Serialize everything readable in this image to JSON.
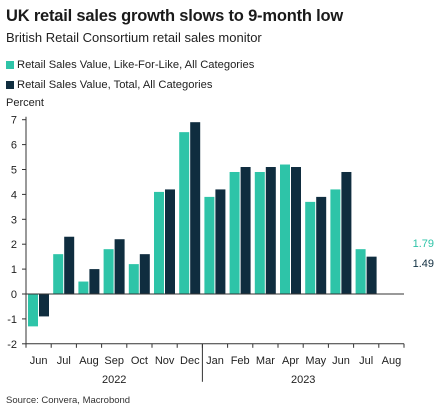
{
  "title": "UK retail sales growth slows to 9-month low",
  "subtitle": "British Retail Consortium retail sales monitor",
  "source": "Source: Convera, Macrobond",
  "colors": {
    "lfl": "#2ec4a8",
    "total": "#0f2d3f"
  },
  "chart_data": {
    "type": "bar",
    "ylabel": "Percent",
    "ylim": [
      -2,
      7
    ],
    "yticks": [
      7,
      6,
      5,
      4,
      3,
      2,
      1,
      0,
      -1,
      -2
    ],
    "categories": [
      "Jun",
      "Jul",
      "Aug",
      "Sep",
      "Oct",
      "Nov",
      "Dec",
      "Jan",
      "Feb",
      "Mar",
      "Apr",
      "May",
      "Jun",
      "Jul",
      "Aug"
    ],
    "year_labels": [
      "2022",
      "2023"
    ],
    "series": [
      {
        "name": "Retail Sales Value, Like-For-Like, All Categories",
        "values": [
          -1.3,
          1.6,
          0.5,
          1.8,
          1.2,
          4.1,
          6.5,
          3.9,
          4.9,
          4.9,
          5.2,
          3.7,
          4.2,
          1.8,
          null
        ]
      },
      {
        "name": "Retail Sales Value, Total, All Categories",
        "values": [
          -0.9,
          2.3,
          1.0,
          2.2,
          1.6,
          4.2,
          6.9,
          4.2,
          5.1,
          5.1,
          5.1,
          3.9,
          4.9,
          1.5,
          null
        ]
      }
    ],
    "end_labels": [
      "1.79",
      "1.49"
    ]
  }
}
